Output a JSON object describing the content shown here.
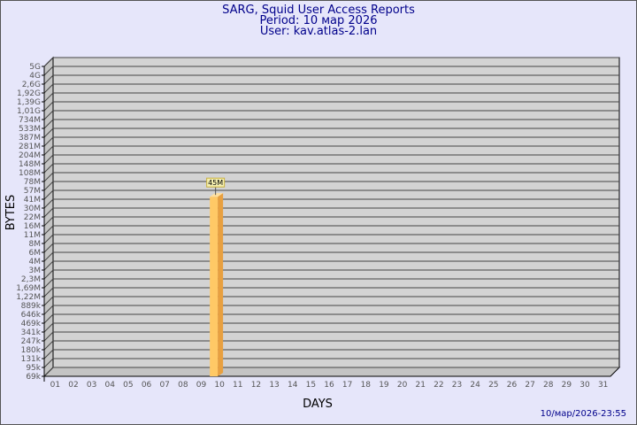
{
  "header": {
    "title": "SARG, Squid User Access Reports",
    "period": "Period: 10 мар 2026",
    "user": "User: kav.atlas-2.lan"
  },
  "footer": {
    "timestamp": "10/мар/2026-23:55"
  },
  "chart_data": {
    "type": "bar",
    "title": "SARG, Squid User Access Reports",
    "xlabel": "DAYS",
    "ylabel": "BYTES",
    "y_scale": "log",
    "grid": true,
    "y_tick_labels": [
      "5G",
      "4G",
      "2,6G",
      "1,92G",
      "1,39G",
      "1,01G",
      "734M",
      "533M",
      "387M",
      "281M",
      "204M",
      "148M",
      "108M",
      "78M",
      "57M",
      "41M",
      "30M",
      "22M",
      "16M",
      "11M",
      "8M",
      "6M",
      "4M",
      "3M",
      "2,3M",
      "1,69M",
      "1,22M",
      "889k",
      "646k",
      "469k",
      "341k",
      "247k",
      "180k",
      "131k",
      "95k",
      "69k"
    ],
    "categories": [
      "01",
      "02",
      "03",
      "04",
      "05",
      "06",
      "07",
      "08",
      "09",
      "10",
      "11",
      "12",
      "13",
      "14",
      "15",
      "16",
      "17",
      "18",
      "19",
      "20",
      "21",
      "22",
      "23",
      "24",
      "25",
      "26",
      "27",
      "28",
      "29",
      "30",
      "31"
    ],
    "bars": [
      {
        "day": "10",
        "value_label": "45M"
      }
    ],
    "colors": {
      "bar_front": "#ffc966",
      "bar_side": "#e8a040",
      "wall": "#d3d3d3",
      "label_bg": "#f5f0b0",
      "label_border": "#c8b040"
    }
  }
}
